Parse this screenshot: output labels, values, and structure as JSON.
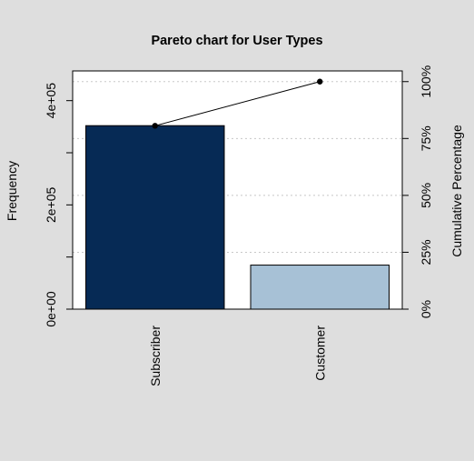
{
  "chart_data": {
    "type": "bar",
    "title": "Pareto chart for User Types",
    "ylabel": "Frequency",
    "y2label": "Cumulative Percentage",
    "categories": [
      "Subscriber",
      "Customer"
    ],
    "values": [
      352000,
      84500
    ],
    "cumulative_percent": [
      80.6,
      100
    ],
    "ylim": [
      0,
      457000
    ],
    "y_ticks": [
      0,
      100000,
      200000,
      300000,
      400000
    ],
    "y_tick_labels": [
      "0e+00",
      "",
      "2e+05",
      "",
      "4e+05"
    ],
    "y2_ticks": [
      0,
      25,
      50,
      75,
      100
    ],
    "y2_tick_labels": [
      "0%",
      "25%",
      "50%",
      "75%",
      "100%"
    ],
    "grid": "horizontal dotted at percent ticks",
    "colors": {
      "background": "#dedede",
      "plot_bg": "#ffffff",
      "bars": [
        "#062a55",
        "#a7c1d6"
      ],
      "grid": "#c8c8c8",
      "line": "#000000"
    }
  }
}
